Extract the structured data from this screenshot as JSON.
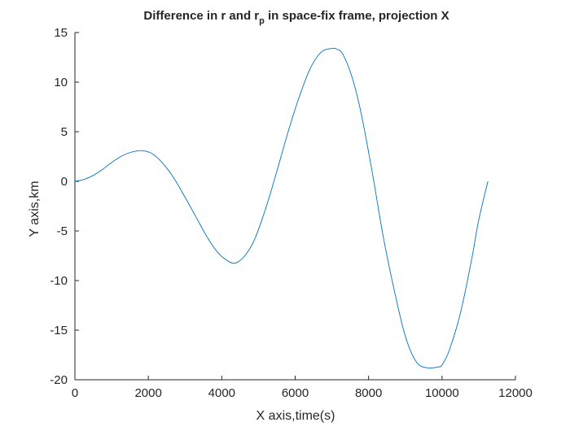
{
  "chart_data": {
    "type": "line",
    "title_main": "Difference in r and r",
    "title_sub": "p",
    "title_rest": " in space-fix frame, projection X",
    "xlabel": "X axis,time(s)",
    "ylabel": "Y axis,km",
    "xlim": [
      0,
      12000
    ],
    "ylim": [
      -20,
      15
    ],
    "xticks": [
      0,
      2000,
      4000,
      6000,
      8000,
      10000,
      12000
    ],
    "yticks": [
      -20,
      -15,
      -10,
      -5,
      0,
      5,
      10,
      15
    ],
    "grid": false,
    "series": [
      {
        "color": "#0072BD",
        "x": [
          0,
          250,
          500,
          750,
          1000,
          1250,
          1500,
          1800,
          2100,
          2400,
          2700,
          3000,
          3300,
          3600,
          3900,
          4200,
          4400,
          4650,
          4900,
          5200,
          5500,
          5800,
          6100,
          6400,
          6700,
          7000,
          7150,
          7300,
          7550,
          7800,
          8100,
          8400,
          8700,
          9000,
          9300,
          9600,
          9900,
          10000,
          10200,
          10500,
          10800,
          11000,
          11250
        ],
        "y": [
          0,
          0.2,
          0.6,
          1.2,
          1.9,
          2.5,
          2.9,
          3.1,
          2.8,
          1.8,
          0.3,
          -1.6,
          -3.6,
          -5.6,
          -7.2,
          -8.1,
          -8.2,
          -7.4,
          -5.8,
          -2.7,
          1.0,
          4.9,
          8.4,
          11.3,
          13.0,
          13.4,
          13.3,
          12.8,
          10.5,
          6.8,
          0.9,
          -5.6,
          -11.0,
          -15.6,
          -18.2,
          -18.8,
          -18.7,
          -18.5,
          -17.0,
          -13.3,
          -8.0,
          -3.9,
          0
        ]
      }
    ]
  }
}
